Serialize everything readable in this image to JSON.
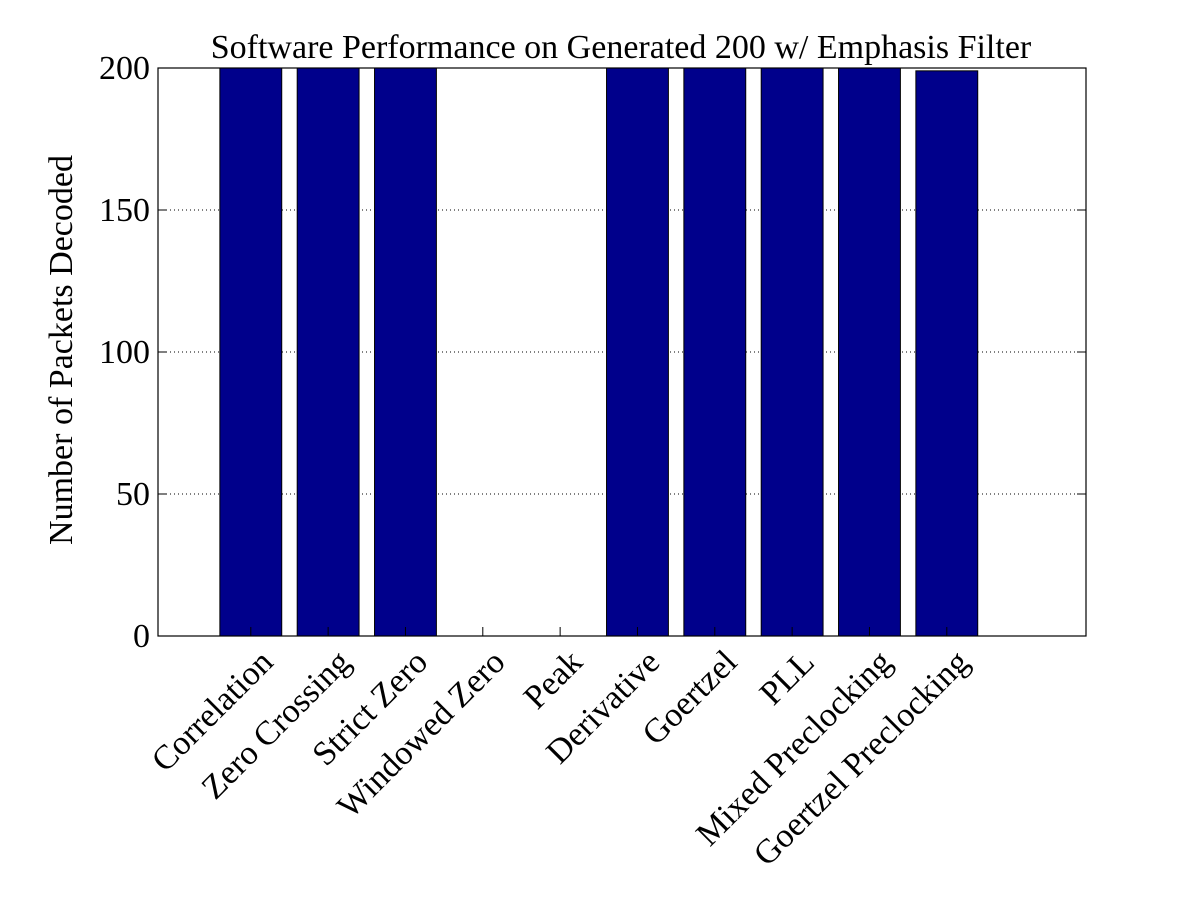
{
  "chart_data": {
    "type": "bar",
    "title": "Software Performance on Generated 200 w/ Emphasis Filter",
    "xlabel": "",
    "ylabel": "Number of Packets Decoded",
    "categories": [
      "Correlation",
      "Zero Crossing",
      "Strict Zero",
      "Windowed Zero",
      "Peak",
      "Derivative",
      "Goertzel",
      "PLL",
      "Mixed Preclocking",
      "Goertzel Preclocking"
    ],
    "values": [
      200,
      200,
      200,
      0,
      0,
      200,
      200,
      200,
      200,
      199
    ],
    "ylim": [
      0,
      200
    ],
    "yticks": [
      0,
      50,
      100,
      150,
      200
    ],
    "grid": true,
    "bar_color": "#00008B"
  }
}
